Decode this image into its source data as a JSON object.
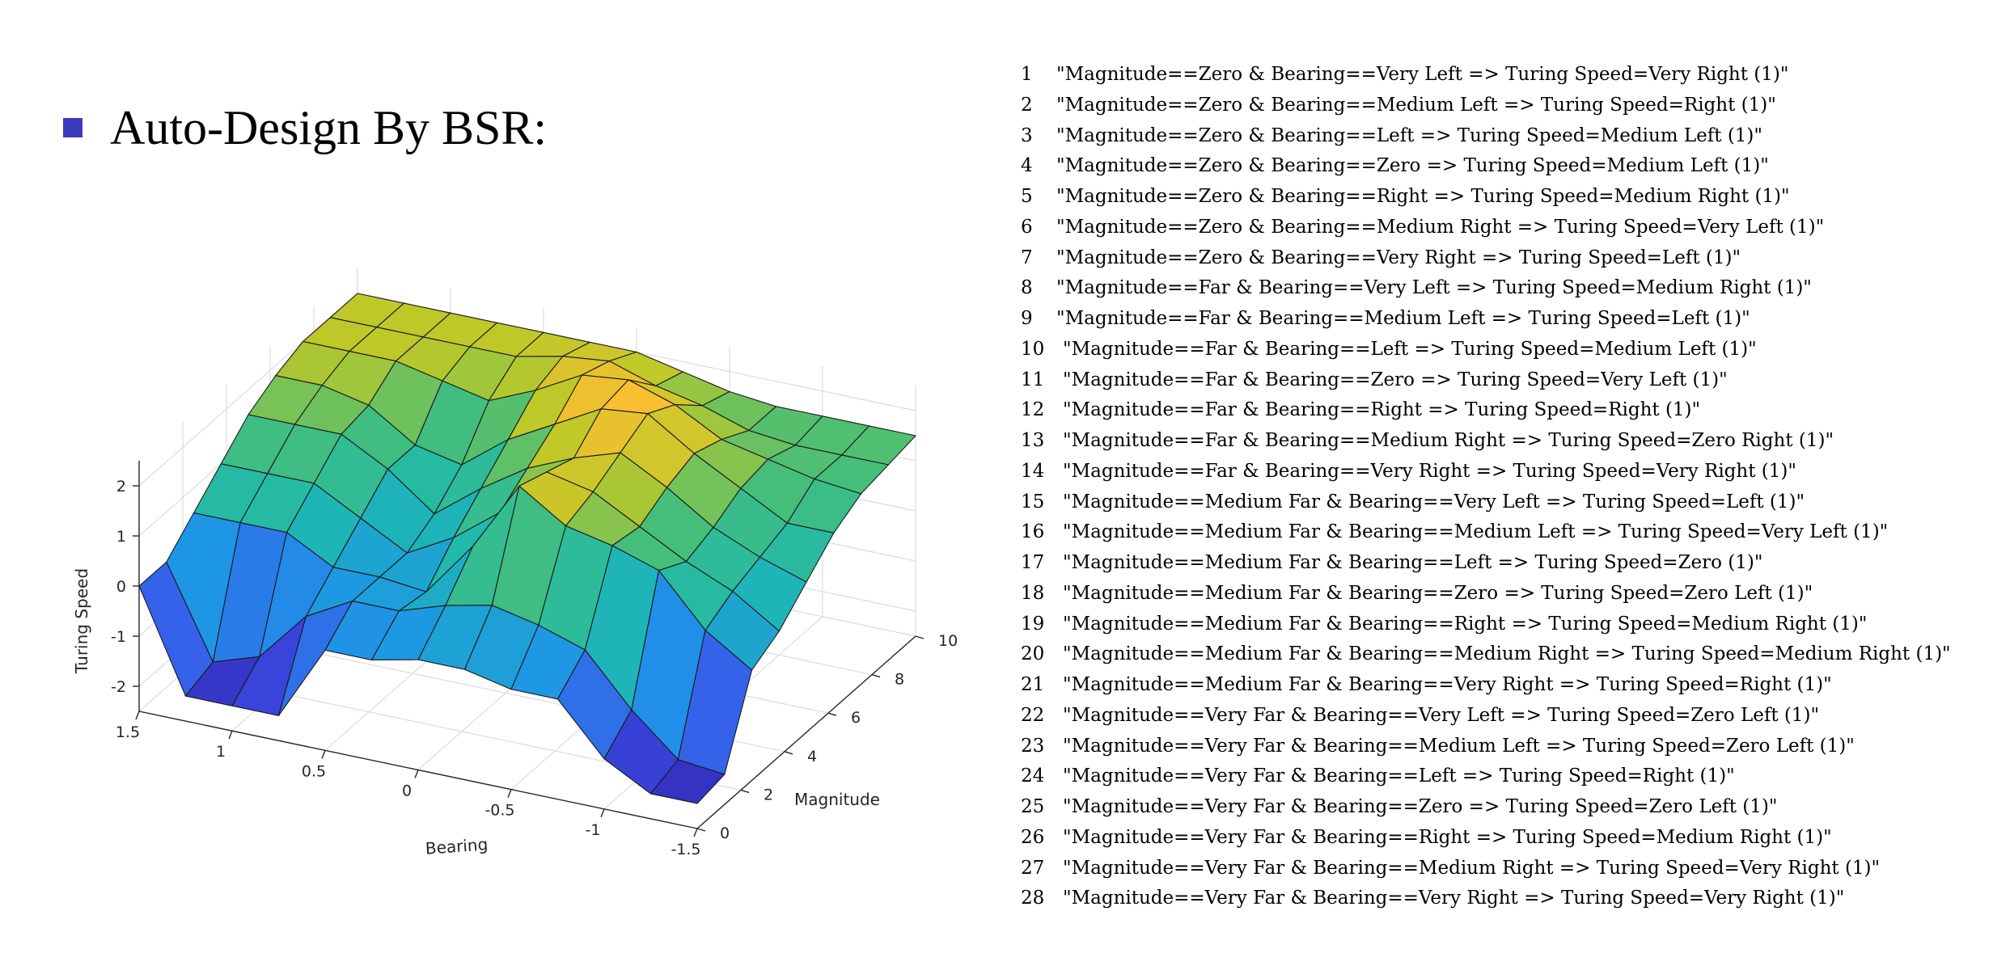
{
  "heading": "Auto-Design By BSR:",
  "colors": {
    "bullet": "#3b3bbf",
    "surface_low": "#2b2bb8",
    "surface_mid": "#1fb8b0",
    "surface_high": "#f9c434"
  },
  "chart_data": {
    "type": "surface3d",
    "title": "",
    "xlabel": "Bearing",
    "ylabel": "Magnitude",
    "zlabel": "Turing Speed",
    "xlim": [
      -1.5,
      1.5
    ],
    "ylim": [
      0,
      10
    ],
    "zlim": [
      -2.5,
      2.5
    ],
    "x_ticks": [
      "1.5",
      "1",
      "0.5",
      "0",
      "-0.5",
      "-1",
      "-1.5"
    ],
    "y_ticks": [
      "0",
      "2",
      "4",
      "6",
      "8",
      "10"
    ],
    "z_ticks": [
      "2",
      "1",
      "0",
      "-1",
      "-2"
    ],
    "grid": true,
    "bearing_values": [
      1.5,
      1.25,
      1.0,
      0.75,
      0.5,
      0.25,
      0.0,
      -0.25,
      -0.5,
      -0.75,
      -1.0,
      -1.25,
      -1.5
    ],
    "magnitude_values": [
      0,
      1.25,
      2.5,
      3.75,
      5,
      6.25,
      7.5,
      8.75,
      10
    ],
    "turing_speed": [
      [
        0,
        -2,
        -2,
        -2,
        -0.5,
        -0.5,
        -0.3,
        -0.3,
        -0.5,
        -0.5,
        -1.5,
        -2,
        -2
      ],
      [
        0,
        -1.8,
        -1.5,
        -0.5,
        0,
        0,
        0.3,
        0.5,
        0.3,
        0,
        -1,
        -1.8,
        -1.9
      ],
      [
        0.5,
        0.5,
        0.5,
        0,
        0,
        -0.1,
        1,
        2.4,
        1.8,
        1.6,
        1.3,
        0.3,
        -0.3
      ],
      [
        1,
        1,
        1,
        0.5,
        0,
        0.5,
        1.2,
        2.2,
        2.0,
        1.5,
        1.0,
        0.6,
        0
      ],
      [
        1.5,
        1.5,
        1.5,
        1.0,
        0.3,
        1.0,
        1.6,
        2.0,
        2.3,
        1.8,
        1.2,
        0.8,
        0.5
      ],
      [
        1.8,
        1.8,
        1.6,
        1.0,
        0.8,
        1.5,
        2.0,
        2.5,
        2.6,
        2.0,
        1.5,
        1.0,
        1.0
      ],
      [
        2,
        2,
        2,
        1.8,
        1.6,
        2.0,
        2.5,
        2.6,
        2.3,
        1.8,
        1.6,
        1.4,
        1.3
      ],
      [
        2,
        2,
        2,
        2,
        2,
        2.2,
        2.3,
        2.0,
        1.8,
        1.5,
        1.4,
        1.4,
        1.4
      ],
      [
        2,
        2,
        2,
        2,
        2,
        2,
        2,
        1.8,
        1.6,
        1.5,
        1.5,
        1.5,
        1.5
      ]
    ]
  },
  "rules": [
    {
      "num": "1",
      "text": "\"Magnitude==Zero & Bearing==Very Left => Turing Speed=Very Right (1)\""
    },
    {
      "num": "2",
      "text": "\"Magnitude==Zero & Bearing==Medium Left => Turing Speed=Right (1)\""
    },
    {
      "num": "3",
      "text": "\"Magnitude==Zero & Bearing==Left => Turing Speed=Medium Left (1)\""
    },
    {
      "num": "4",
      "text": "\"Magnitude==Zero & Bearing==Zero => Turing Speed=Medium Left (1)\""
    },
    {
      "num": "5",
      "text": "\"Magnitude==Zero & Bearing==Right => Turing Speed=Medium Right (1)\""
    },
    {
      "num": "6",
      "text": "\"Magnitude==Zero & Bearing==Medium Right => Turing Speed=Very Left (1)\""
    },
    {
      "num": "7",
      "text": "\"Magnitude==Zero & Bearing==Very Right => Turing Speed=Left (1)\""
    },
    {
      "num": "8",
      "text": "\"Magnitude==Far & Bearing==Very Left => Turing Speed=Medium Right (1)\""
    },
    {
      "num": "9",
      "text": "\"Magnitude==Far & Bearing==Medium Left => Turing Speed=Left (1)\""
    },
    {
      "num": "10",
      "text": "\"Magnitude==Far & Bearing==Left => Turing Speed=Medium Left (1)\""
    },
    {
      "num": "11",
      "text": "\"Magnitude==Far & Bearing==Zero => Turing Speed=Very Left (1)\""
    },
    {
      "num": "12",
      "text": "\"Magnitude==Far & Bearing==Right => Turing Speed=Right (1)\""
    },
    {
      "num": "13",
      "text": "\"Magnitude==Far & Bearing==Medium Right => Turing Speed=Zero Right (1)\""
    },
    {
      "num": "14",
      "text": "\"Magnitude==Far & Bearing==Very Right => Turing Speed=Very Right (1)\""
    },
    {
      "num": "15",
      "text": "\"Magnitude==Medium Far & Bearing==Very Left => Turing Speed=Left (1)\""
    },
    {
      "num": "16",
      "text": "\"Magnitude==Medium Far & Bearing==Medium Left => Turing Speed=Very Left (1)\""
    },
    {
      "num": "17",
      "text": "\"Magnitude==Medium Far & Bearing==Left => Turing Speed=Zero (1)\""
    },
    {
      "num": "18",
      "text": "\"Magnitude==Medium Far & Bearing==Zero => Turing Speed=Zero Left (1)\""
    },
    {
      "num": "19",
      "text": "\"Magnitude==Medium Far & Bearing==Right => Turing Speed=Medium Right (1)\""
    },
    {
      "num": "20",
      "text": "\"Magnitude==Medium Far & Bearing==Medium Right => Turing Speed=Medium Right (1)\""
    },
    {
      "num": "21",
      "text": "\"Magnitude==Medium Far & Bearing==Very Right => Turing Speed=Right (1)\""
    },
    {
      "num": "22",
      "text": "\"Magnitude==Very Far & Bearing==Very Left => Turing Speed=Zero Left (1)\""
    },
    {
      "num": "23",
      "text": "\"Magnitude==Very Far & Bearing==Medium Left => Turing Speed=Zero Left (1)\""
    },
    {
      "num": "24",
      "text": "\"Magnitude==Very Far & Bearing==Left => Turing Speed=Right (1)\""
    },
    {
      "num": "25",
      "text": "\"Magnitude==Very Far & Bearing==Zero => Turing Speed=Zero Left (1)\""
    },
    {
      "num": "26",
      "text": "\"Magnitude==Very Far & Bearing==Right => Turing Speed=Medium Right (1)\""
    },
    {
      "num": "27",
      "text": "\"Magnitude==Very Far & Bearing==Medium Right => Turing Speed=Very Right (1)\""
    },
    {
      "num": "28",
      "text": "\"Magnitude==Very Far & Bearing==Very Right => Turing Speed=Very Right (1)\""
    }
  ]
}
